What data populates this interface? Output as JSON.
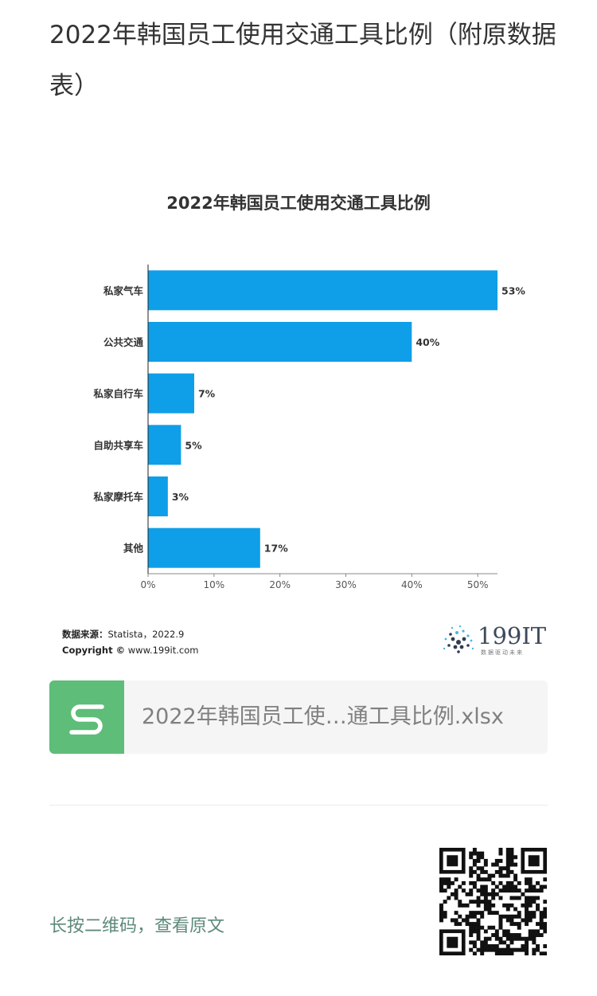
{
  "article": {
    "title": "2022年韩国员工使用交通工具比例（附原数据表）"
  },
  "chart_data": {
    "type": "bar",
    "orientation": "horizontal",
    "title": "2022年韩国员工使用交通工具比例",
    "categories": [
      "私家气车",
      "公共交通",
      "私家自行车",
      "自助共享车",
      "私家摩托车",
      "其他"
    ],
    "values": [
      53,
      40,
      7,
      5,
      3,
      17
    ],
    "value_labels": [
      "53%",
      "40%",
      "7%",
      "5%",
      "3%",
      "17%"
    ],
    "xlim": [
      0,
      53
    ],
    "xticks": [
      0,
      10,
      20,
      30,
      40,
      50
    ],
    "xtick_labels": [
      "0%",
      "10%",
      "20%",
      "30%",
      "40%",
      "50%"
    ],
    "bar_color": "#0f9ee8",
    "grid": false
  },
  "source": {
    "label": "数据来源：",
    "value": "Statista，2022.9",
    "copyright_label": "Copyright ©",
    "copyright_value": "www.199it.com"
  },
  "logo": {
    "text": "199IT",
    "tagline": "数据驱动未来"
  },
  "attachment": {
    "icon": "spreadsheet-s-icon",
    "icon_color": "#5ebd78",
    "filename": "2022年韩国员工使…通工具比例.xlsx"
  },
  "footer": {
    "hint": "长按二维码，查看原文",
    "qr_icon": "qr-code-icon"
  }
}
